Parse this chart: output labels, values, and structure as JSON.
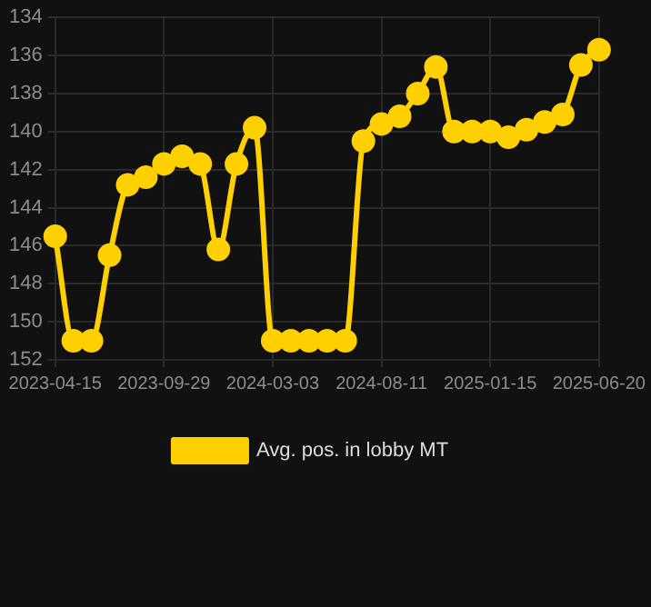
{
  "chart_data": {
    "type": "line",
    "categories": [
      "2023-04-15",
      null,
      null,
      null,
      null,
      null,
      "2023-09-29",
      null,
      null,
      null,
      null,
      null,
      "2024-03-03",
      null,
      null,
      null,
      null,
      null,
      "2024-08-11",
      null,
      null,
      null,
      null,
      null,
      "2025-01-15",
      null,
      null,
      null,
      null,
      null,
      "2025-06-20"
    ],
    "series": [
      {
        "name": "Avg. pos. in lobby MT",
        "color": "#ffd000",
        "values": [
          145.5,
          151,
          151,
          146.5,
          142.8,
          142.4,
          141.7,
          141.3,
          141.7,
          146.2,
          141.7,
          139.8,
          151,
          151,
          151,
          151,
          151,
          140.5,
          139.6,
          139.2,
          138,
          136.6,
          140,
          140,
          140,
          140.3,
          139.9,
          139.5,
          139.1,
          136.5,
          135.7
        ]
      }
    ],
    "ylim": [
      152,
      134
    ],
    "yticks": [
      134,
      136,
      138,
      140,
      142,
      144,
      146,
      148,
      150,
      152
    ],
    "grid": true,
    "legend": "bottom",
    "marker": "circle",
    "line_style": "solid"
  }
}
